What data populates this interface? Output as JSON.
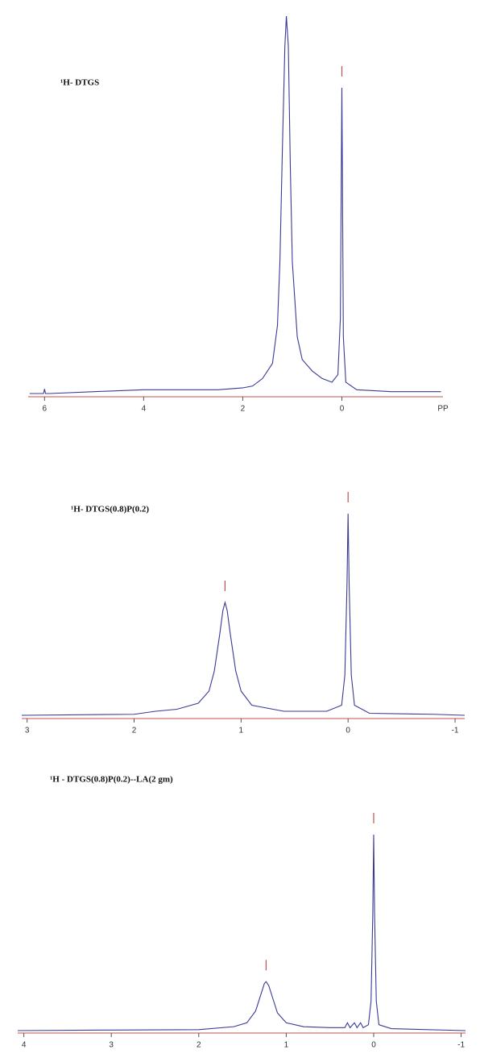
{
  "chart_data": [
    {
      "type": "line",
      "title": "¹H- DTGS",
      "x_label": "PP",
      "color": "#3a3a96",
      "axis_color": "#c0504d",
      "xlim": [
        6.33,
        -2.04
      ],
      "xticks": [
        6,
        4,
        2,
        0
      ],
      "peaks": [
        0
      ],
      "x": [
        6.3,
        6.02,
        6.0,
        5.98,
        5.9,
        5.0,
        4.0,
        3.0,
        2.5,
        2.0,
        1.8,
        1.6,
        1.5,
        1.4,
        1.3,
        1.25,
        1.2,
        1.15,
        1.12,
        1.08,
        1.04,
        1.0,
        0.9,
        0.8,
        0.6,
        0.4,
        0.2,
        0.08,
        0.03,
        0.01,
        0,
        -0.01,
        -0.03,
        -0.08,
        -0.3,
        -1.0,
        -2.0
      ],
      "values": [
        0,
        0,
        1.2,
        0,
        0,
        0.5,
        1,
        1,
        1,
        1.5,
        2,
        4,
        6,
        8,
        18,
        35,
        65,
        92,
        100,
        92,
        60,
        35,
        15,
        9,
        6,
        4,
        3,
        5,
        20,
        60,
        81,
        60,
        15,
        3,
        1,
        0.5,
        0.5
      ]
    },
    {
      "type": "line",
      "title": "¹H-  DTGS(0.8)P(0.2)",
      "color": "#3a3a96",
      "axis_color": "#c0504d",
      "xlim": [
        3.05,
        -1.09
      ],
      "xticks": [
        3,
        2,
        1,
        0,
        -1
      ],
      "peaks": [
        1.15,
        0
      ],
      "x": [
        3.05,
        2.0,
        1.8,
        1.6,
        1.4,
        1.3,
        1.25,
        1.2,
        1.17,
        1.15,
        1.13,
        1.1,
        1.05,
        1.0,
        0.9,
        0.6,
        0.2,
        0.06,
        0.03,
        0.01,
        0,
        -0.01,
        -0.03,
        -0.06,
        -0.2,
        -0.8,
        -1.09
      ],
      "values": [
        0,
        0.5,
        2,
        3,
        6,
        12,
        22,
        40,
        52,
        56,
        52,
        40,
        22,
        12,
        5,
        2,
        2,
        5,
        20,
        65,
        100,
        65,
        20,
        5,
        1,
        0.5,
        0
      ]
    },
    {
      "type": "line",
      "title": "¹H - DTGS(0.8)P(0.2)--LA(2 gm)",
      "color": "#3a3a96",
      "axis_color": "#c0504d",
      "xlim": [
        4.07,
        -1.05
      ],
      "xticks": [
        4,
        3,
        2,
        1,
        0,
        -1
      ],
      "peaks": [
        1.23,
        0
      ],
      "x": [
        4.07,
        3.0,
        2.0,
        1.6,
        1.45,
        1.35,
        1.3,
        1.25,
        1.23,
        1.2,
        1.15,
        1.1,
        1.0,
        0.8,
        0.5,
        0.33,
        0.3,
        0.27,
        0.22,
        0.19,
        0.15,
        0.12,
        0.06,
        0.03,
        0.01,
        0,
        -0.01,
        -0.03,
        -0.06,
        -0.2,
        -1.05
      ],
      "values": [
        0,
        0.3,
        0.5,
        2,
        4,
        10,
        17,
        24,
        25,
        23,
        16,
        9,
        4,
        2,
        1.5,
        1.5,
        4,
        1.5,
        4,
        1.5,
        4,
        1.5,
        3,
        15,
        60,
        100,
        60,
        15,
        3,
        1,
        0
      ]
    }
  ]
}
